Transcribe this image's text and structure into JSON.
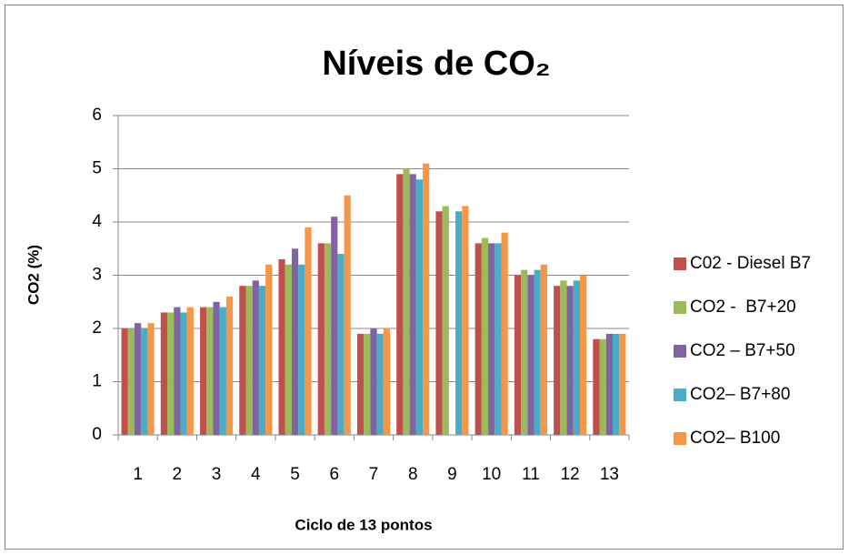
{
  "chart_data": {
    "type": "bar",
    "title": "Níveis de CO₂",
    "x_label": "Ciclo de 13 pontos",
    "y_label": "CO2 (%)",
    "categories": [
      "1",
      "2",
      "3",
      "4",
      "5",
      "6",
      "7",
      "8",
      "9",
      "10",
      "11",
      "12",
      "13"
    ],
    "series": [
      {
        "name": "C02 - Diesel B7",
        "color": "#c0504d",
        "values": [
          2.0,
          2.3,
          2.4,
          2.8,
          3.3,
          3.6,
          1.9,
          4.9,
          4.2,
          3.6,
          3.0,
          2.8,
          1.8
        ]
      },
      {
        "name": "CO2 -  B7+20",
        "color": "#9bbb59",
        "values": [
          2.0,
          2.3,
          2.4,
          2.8,
          3.2,
          3.6,
          1.9,
          5.0,
          4.3,
          3.7,
          3.1,
          2.9,
          1.8
        ]
      },
      {
        "name": "CO2 – B7+50",
        "color": "#8064a2",
        "values": [
          2.1,
          2.4,
          2.5,
          2.9,
          3.5,
          4.1,
          2.0,
          4.9,
          null,
          3.6,
          3.0,
          2.8,
          1.9
        ]
      },
      {
        "name": "CO2– B7+80",
        "color": "#4bacc6",
        "values": [
          2.0,
          2.3,
          2.4,
          2.8,
          3.2,
          3.4,
          1.9,
          4.8,
          4.2,
          3.6,
          3.1,
          2.9,
          1.9
        ]
      },
      {
        "name": "CO2– B100",
        "color": "#f79646",
        "values": [
          2.1,
          2.4,
          2.6,
          3.2,
          3.9,
          4.5,
          2.0,
          5.1,
          4.3,
          3.8,
          3.2,
          3.0,
          1.9
        ]
      }
    ],
    "ylim": [
      0,
      6
    ],
    "yticks": [
      0,
      1,
      2,
      3,
      4,
      5,
      6
    ],
    "grid": true,
    "legend": "right"
  }
}
